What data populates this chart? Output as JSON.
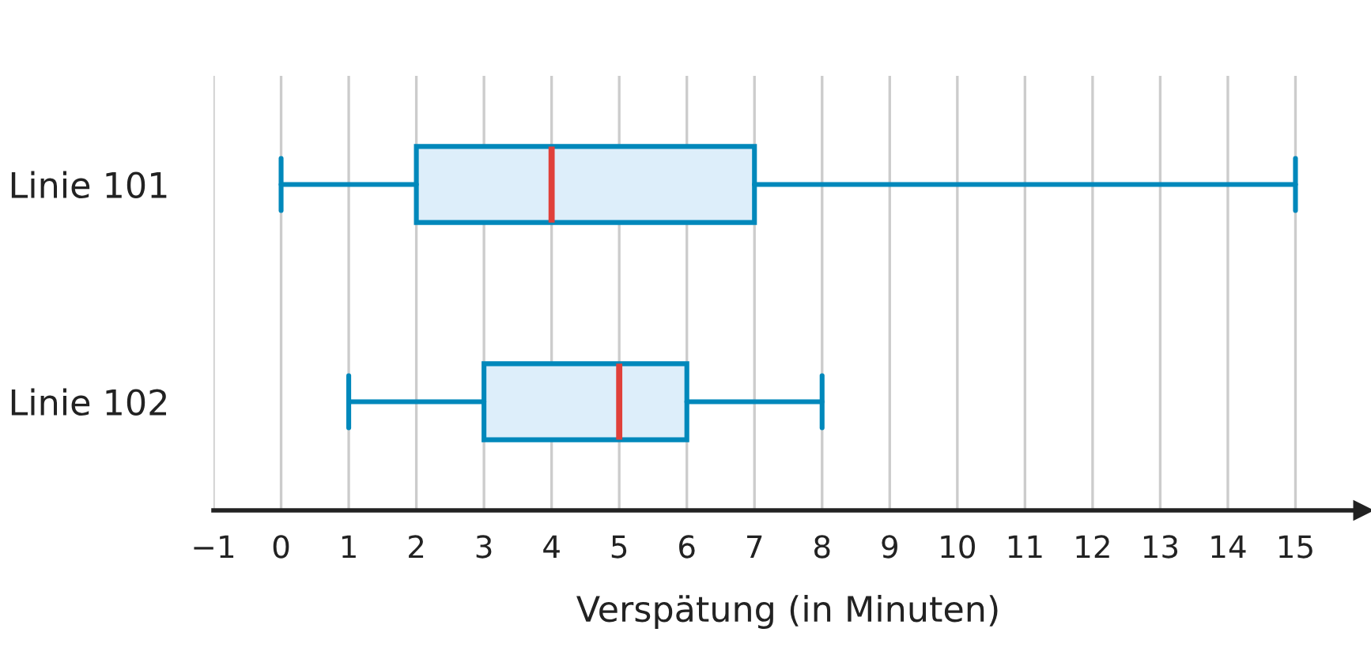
{
  "chart_data": {
    "type": "box",
    "orientation": "horizontal",
    "xlabel": "Verspätung (in Minuten)",
    "categories": [
      "Linie 101",
      "Linie 102"
    ],
    "series": [
      {
        "color": "#0088bb",
        "boxes": [
          {
            "low": 0,
            "q1": 2,
            "median": 4,
            "q3": 7,
            "high": 15
          },
          {
            "low": 1,
            "q1": 3,
            "median": 5,
            "q3": 6,
            "high": 8
          }
        ]
      }
    ],
    "xlim": [
      -1,
      16
    ],
    "xticks": [
      {
        "value": -1,
        "label": "−1"
      },
      0,
      1,
      2,
      3,
      4,
      5,
      6,
      7,
      8,
      9,
      10,
      11,
      12,
      13,
      14,
      15
    ],
    "grid": "x",
    "legend": false
  }
}
